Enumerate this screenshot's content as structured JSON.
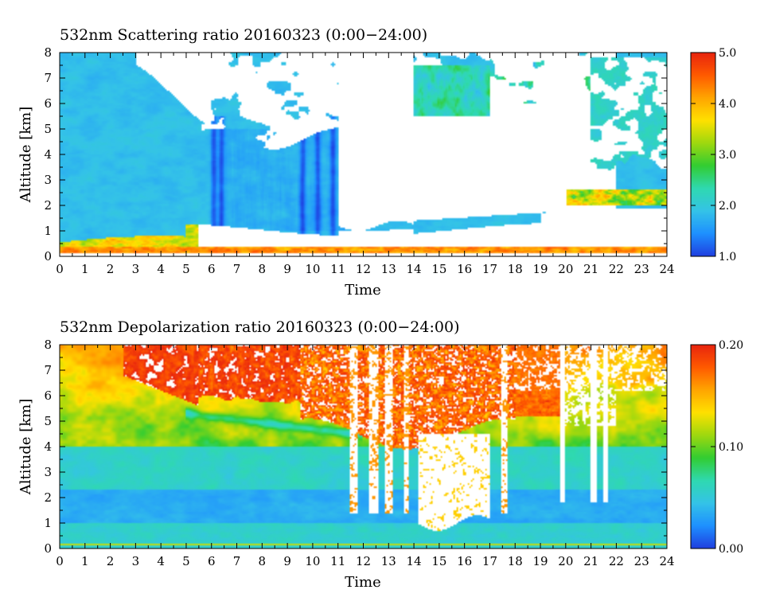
{
  "chart_data": [
    {
      "type": "heatmap",
      "title": "532nm Scattering ratio  20160323 (0:00−24:00)",
      "xlabel": "Time",
      "ylabel": "Altitude [km]",
      "x_ticks": [
        "0",
        "1",
        "2",
        "3",
        "4",
        "5",
        "6",
        "7",
        "8",
        "9",
        "10",
        "11",
        "12",
        "13",
        "14",
        "15",
        "16",
        "17",
        "18",
        "19",
        "20",
        "21",
        "22",
        "23",
        "24"
      ],
      "y_ticks": [
        "0",
        "1",
        "2",
        "3",
        "4",
        "5",
        "6",
        "7",
        "8"
      ],
      "xlim": [
        0,
        24
      ],
      "ylim": [
        0,
        8
      ],
      "colorbar": {
        "min": 1.0,
        "max": 5.0,
        "ticks": [
          "1.0",
          "2.0",
          "3.0",
          "4.0",
          "5.0"
        ],
        "tick_values": [
          1.0,
          2.0,
          3.0,
          4.0,
          5.0
        ]
      },
      "palette": [
        "#1f3fe0",
        "#1e90ff",
        "#34c3e8",
        "#2fd9b0",
        "#32cd32",
        "#9ed80f",
        "#ffe100",
        "#ffa500",
        "#ff5a00",
        "#e8240f"
      ],
      "saturated_color": "#ffffff",
      "background_value": 2.0
    },
    {
      "type": "heatmap",
      "title": "532nm Depolarization ratio  20160323 (0:00−24:00)",
      "xlabel": "Time",
      "ylabel": "Altitude [km]",
      "x_ticks": [
        "0",
        "1",
        "2",
        "3",
        "4",
        "5",
        "6",
        "7",
        "8",
        "9",
        "10",
        "11",
        "12",
        "13",
        "14",
        "15",
        "16",
        "17",
        "18",
        "19",
        "20",
        "21",
        "22",
        "23",
        "24"
      ],
      "y_ticks": [
        "0",
        "1",
        "2",
        "3",
        "4",
        "5",
        "6",
        "7",
        "8"
      ],
      "xlim": [
        0,
        24
      ],
      "ylim": [
        0,
        8
      ],
      "colorbar": {
        "min": 0.0,
        "max": 0.2,
        "ticks": [
          "0.00",
          "0.10",
          "0.20"
        ],
        "tick_values": [
          0.0,
          0.1,
          0.2
        ]
      },
      "palette": [
        "#1f3fe0",
        "#1e90ff",
        "#34c3e8",
        "#2fd9b0",
        "#32cd32",
        "#9ed80f",
        "#ffe100",
        "#ffa500",
        "#ff5a00",
        "#e8240f"
      ],
      "saturated_color": "#ffffff",
      "background_value": 0.05
    }
  ]
}
